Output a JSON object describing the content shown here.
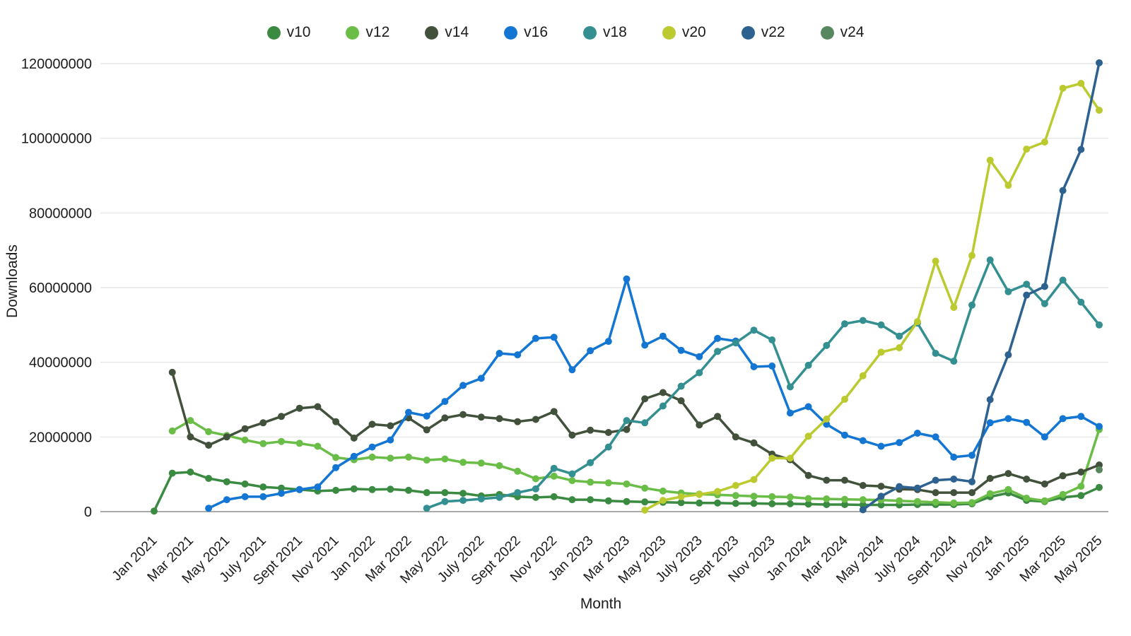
{
  "chart_data": {
    "type": "line",
    "title": "",
    "xlabel": "Month",
    "ylabel": "Downloads",
    "value_unit": "downloads (millions)",
    "value_scale": 1000000,
    "ylim": [
      0,
      120
    ],
    "y_ticks": [
      0,
      20,
      40,
      60,
      80,
      100,
      120
    ],
    "y_tick_labels": [
      "0",
      "20000000",
      "40000000",
      "60000000",
      "80000000",
      "100000000",
      "120000000"
    ],
    "grid": true,
    "legend_position": "top",
    "categories": [
      "Jan 2021",
      "Feb 2021",
      "Mar 2021",
      "Apr 2021",
      "May 2021",
      "Jun 2021",
      "Jul 2021",
      "Aug 2021",
      "Sep 2021",
      "Oct 2021",
      "Nov 2021",
      "Dec 2021",
      "Jan 2022",
      "Feb 2022",
      "Mar 2022",
      "Apr 2022",
      "May 2022",
      "Jun 2022",
      "Jul 2022",
      "Aug 2022",
      "Sep 2022",
      "Oct 2022",
      "Nov 2022",
      "Dec 2022",
      "Jan 2023",
      "Feb 2023",
      "Mar 2023",
      "Apr 2023",
      "May 2023",
      "Jun 2023",
      "Jul 2023",
      "Aug 2023",
      "Sep 2023",
      "Oct 2023",
      "Nov 2023",
      "Dec 2023",
      "Jan 2024",
      "Feb 2024",
      "Mar 2024",
      "Apr 2024",
      "May 2024",
      "Jun 2024",
      "Jul 2024",
      "Aug 2024",
      "Sep 2024",
      "Oct 2024",
      "Nov 2024",
      "Dec 2024",
      "Jan 2025",
      "Feb 2025",
      "Mar 2025",
      "Apr 2025",
      "May 2025"
    ],
    "x_tick_every": 2,
    "x_tick_labels": [
      "Jan 2021",
      "Mar 2021",
      "May 2021",
      "July 2021",
      "Sept 2021",
      "Nov 2021",
      "Jan 2022",
      "Mar 2022",
      "May 2022",
      "July 2022",
      "Sept 2022",
      "Nov 2022",
      "Jan 2023",
      "Mar 2023",
      "May 2023",
      "July 2023",
      "Sept 2023",
      "Nov 2023",
      "Jan 2024",
      "Mar 2024",
      "May 2024",
      "July 2024",
      "Sept 2024",
      "Nov 2024",
      "Jan 2025",
      "Mar 2025",
      "May 2025"
    ],
    "series": [
      {
        "name": "v10",
        "color": "#3a8a41",
        "values": [
          0.15,
          10.3,
          10.6,
          8.9,
          8.0,
          7.4,
          6.6,
          6.3,
          5.9,
          5.5,
          5.7,
          6.1,
          5.9,
          6.0,
          5.7,
          5.1,
          5.1,
          4.9,
          4.2,
          4.6,
          4.0,
          3.8,
          4.0,
          3.2,
          3.2,
          2.9,
          2.7,
          2.6,
          2.5,
          2.4,
          2.3,
          2.3,
          2.2,
          2.2,
          2.1,
          2.1,
          2.0,
          1.9,
          1.9,
          1.8,
          1.8,
          1.8,
          1.9,
          1.9,
          1.9,
          2.1,
          4.0,
          5.0,
          3.0,
          2.7,
          3.8,
          4.3,
          6.5
        ]
      },
      {
        "name": "v12",
        "color": "#6abd46",
        "values": [
          null,
          21.6,
          24.4,
          21.4,
          20.4,
          19.2,
          18.2,
          18.8,
          18.3,
          17.5,
          14.5,
          13.9,
          14.6,
          14.3,
          14.6,
          13.8,
          14.1,
          13.2,
          13.0,
          12.3,
          10.8,
          8.8,
          9.5,
          8.3,
          7.9,
          7.7,
          7.4,
          6.3,
          5.5,
          5.0,
          4.7,
          4.5,
          4.3,
          4.1,
          4.0,
          3.9,
          3.5,
          3.4,
          3.3,
          3.2,
          3.1,
          2.9,
          2.7,
          2.5,
          2.3,
          2.4,
          4.8,
          5.9,
          3.6,
          2.9,
          4.6,
          6.8,
          22.0
        ]
      },
      {
        "name": "v14",
        "color": "#42513c",
        "values": [
          null,
          37.3,
          20.0,
          17.8,
          20.0,
          22.2,
          23.8,
          25.5,
          27.7,
          28.1,
          24.1,
          19.7,
          23.4,
          23.0,
          25.1,
          21.9,
          25.1,
          26.0,
          25.3,
          24.9,
          24.1,
          24.7,
          26.8,
          20.5,
          21.8,
          21.2,
          22.0,
          30.2,
          31.9,
          29.7,
          23.2,
          25.5,
          20.0,
          18.4,
          15.4,
          13.9,
          9.7,
          8.4,
          8.4,
          7.0,
          6.8,
          6.0,
          5.9,
          5.1,
          5.1,
          5.1,
          8.9,
          10.2,
          8.7,
          7.4,
          9.6,
          10.6,
          12.5
        ]
      },
      {
        "name": "v16",
        "color": "#1376d2",
        "values": [
          null,
          null,
          null,
          0.9,
          3.2,
          4.0,
          4.0,
          4.9,
          5.9,
          6.6,
          11.8,
          14.8,
          17.3,
          19.2,
          26.6,
          25.6,
          29.5,
          33.8,
          35.7,
          42.4,
          42.0,
          46.4,
          46.7,
          38.0,
          43.1,
          45.6,
          62.3,
          44.6,
          47.0,
          43.2,
          41.5,
          46.4,
          45.7,
          38.8,
          39.0,
          26.4,
          28.1,
          23.4,
          20.5,
          19.0,
          17.5,
          18.5,
          21.0,
          20.0,
          14.6,
          15.1,
          23.8,
          24.9,
          23.9,
          20.0,
          24.9,
          25.5,
          22.8
        ]
      },
      {
        "name": "v18",
        "color": "#338f90",
        "values": [
          null,
          null,
          null,
          null,
          null,
          null,
          null,
          null,
          null,
          null,
          null,
          null,
          null,
          null,
          null,
          0.9,
          2.7,
          3.0,
          3.4,
          3.8,
          5.1,
          6.1,
          11.6,
          10.1,
          13.1,
          17.3,
          24.4,
          23.8,
          28.3,
          33.6,
          37.2,
          42.9,
          45.2,
          48.6,
          46.0,
          33.4,
          39.2,
          44.5,
          50.3,
          51.2,
          50.0,
          47.0,
          50.5,
          42.4,
          40.3,
          55.3,
          67.4,
          58.9,
          60.9,
          55.7,
          62.0,
          56.1,
          50.0
        ]
      },
      {
        "name": "v20",
        "color": "#bbca2f",
        "values": [
          null,
          null,
          null,
          null,
          null,
          null,
          null,
          null,
          null,
          null,
          null,
          null,
          null,
          null,
          null,
          null,
          null,
          null,
          null,
          null,
          null,
          null,
          null,
          null,
          null,
          null,
          null,
          0.4,
          3.0,
          4.0,
          4.6,
          5.4,
          7.0,
          8.6,
          14.3,
          14.3,
          20.2,
          24.8,
          30.1,
          36.4,
          42.7,
          43.9,
          50.9,
          67.1,
          54.7,
          68.6,
          94.1,
          87.4,
          97.1,
          99.0,
          113.4,
          114.7,
          107.5
        ]
      },
      {
        "name": "v22",
        "color": "#2d618f",
        "values": [
          null,
          null,
          null,
          null,
          null,
          null,
          null,
          null,
          null,
          null,
          null,
          null,
          null,
          null,
          null,
          null,
          null,
          null,
          null,
          null,
          null,
          null,
          null,
          null,
          null,
          null,
          null,
          null,
          null,
          null,
          null,
          null,
          null,
          null,
          null,
          null,
          null,
          null,
          null,
          0.5,
          4.1,
          6.7,
          6.3,
          8.4,
          8.7,
          8.0,
          30.0,
          42.0,
          58.0,
          60.3,
          86.0,
          97.0,
          120.2
        ]
      },
      {
        "name": "v24",
        "color": "#57875f",
        "values": [
          null,
          null,
          null,
          null,
          null,
          null,
          null,
          null,
          null,
          null,
          null,
          null,
          null,
          null,
          null,
          null,
          null,
          null,
          null,
          null,
          null,
          null,
          null,
          null,
          null,
          null,
          null,
          null,
          null,
          null,
          null,
          null,
          null,
          null,
          null,
          null,
          null,
          null,
          null,
          null,
          null,
          null,
          null,
          null,
          null,
          null,
          null,
          null,
          null,
          null,
          null,
          null,
          11.2
        ]
      }
    ],
    "style": {
      "background": "#ffffff",
      "gridline_color": "#e2e2e2",
      "axis_line_color": "#8e8e8e",
      "text_color": "#1c1c1c",
      "line_width": 3.5,
      "point_radius": 5
    }
  }
}
